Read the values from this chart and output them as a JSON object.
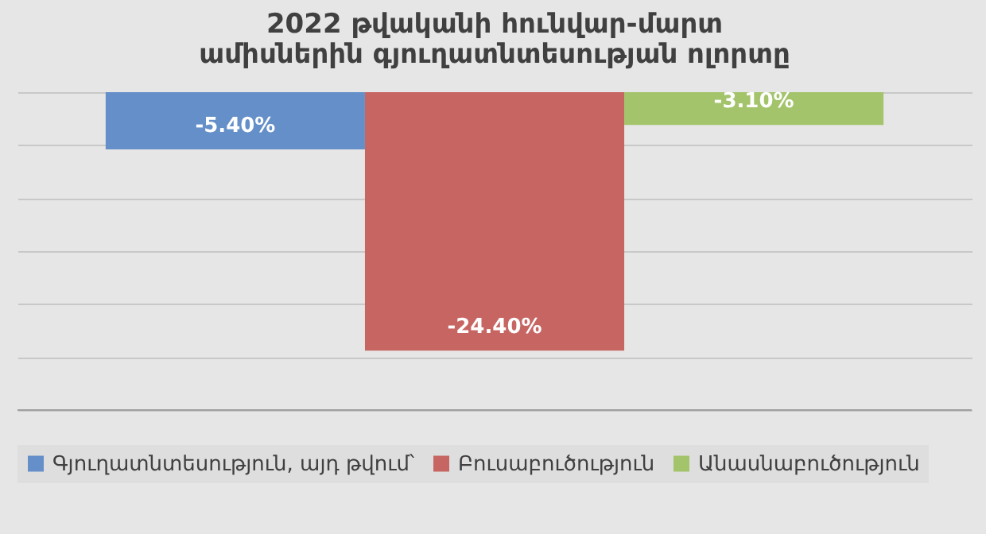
{
  "chart_data": {
    "type": "bar",
    "title": "2022 թվականի հունվար-մարտ ամիսներին գյուղատնտեսության ոլորտը",
    "categories": [
      null
    ],
    "series": [
      {
        "name": "Գյուղատնտեսություն, այդ թվում՝",
        "color": "#648fc9",
        "values": [
          -5.4
        ],
        "value_labels": [
          "-5.40%"
        ]
      },
      {
        "name": "Բուսաբուծություն",
        "color": "#c76563",
        "values": [
          -24.4
        ],
        "value_labels": [
          "-24.40%"
        ]
      },
      {
        "name": "Անասնաբուծություն",
        "color": "#a3c46b",
        "values": [
          -3.1
        ],
        "value_labels": [
          "-3.10%"
        ]
      }
    ],
    "ylim": [
      -30,
      0
    ],
    "yticks": [
      {
        "value": 0,
        "label": null
      },
      {
        "value": -5,
        "label": null
      },
      {
        "value": -10,
        "label": null
      },
      {
        "value": -15,
        "label": null
      },
      {
        "value": -20,
        "label": null
      },
      {
        "value": -25,
        "label": null
      },
      {
        "value": -30,
        "label": null
      }
    ],
    "grid": "y",
    "tick_labels": false,
    "legend": "bottom"
  }
}
